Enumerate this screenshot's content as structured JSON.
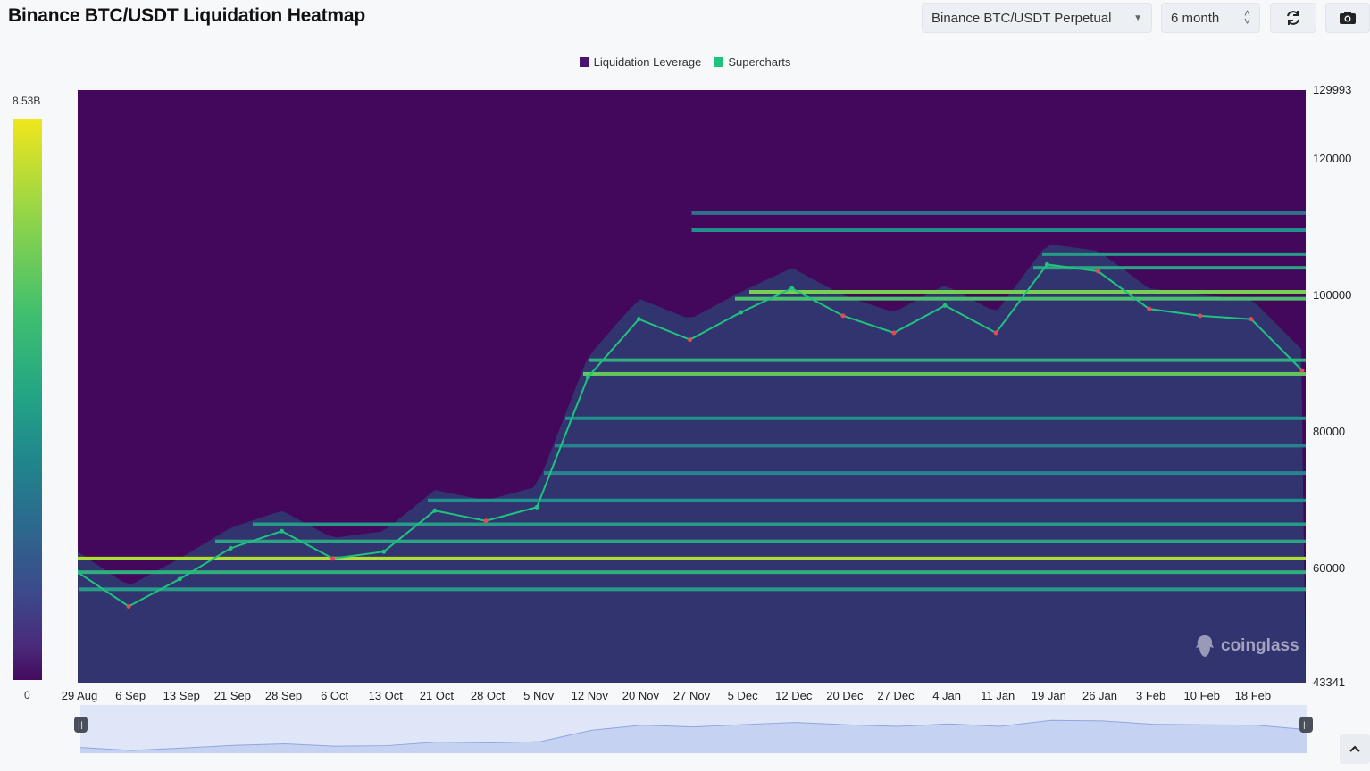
{
  "header": {
    "title": "Binance BTC/USDT Liquidation Heatmap",
    "pair_select": "Binance BTC/USDT Perpetual",
    "range_select": "6 month",
    "refresh_icon": "refresh-icon",
    "camera_icon": "camera-icon"
  },
  "legend": [
    {
      "label": "Liquidation Leverage",
      "color": "#4a1470"
    },
    {
      "label": "Supercharts",
      "color": "#1ec47e"
    }
  ],
  "scale": {
    "max_label": "8.53B",
    "min_label": "0"
  },
  "watermark": "coinglass",
  "chart_data": {
    "type": "heatmap",
    "y_ticks": [
      "129993",
      "120000",
      "100000",
      "80000",
      "60000",
      "43341"
    ],
    "ylim": [
      43341,
      129993
    ],
    "x_ticks": [
      "29 Aug",
      "6 Sep",
      "13 Sep",
      "21 Sep",
      "28 Sep",
      "6 Oct",
      "13 Oct",
      "21 Oct",
      "28 Oct",
      "5 Nov",
      "12 Nov",
      "20 Nov",
      "27 Nov",
      "5 Dec",
      "12 Dec",
      "20 Dec",
      "27 Dec",
      "4 Jan",
      "11 Jan",
      "19 Jan",
      "26 Jan",
      "3 Feb",
      "10 Feb",
      "18 Feb"
    ],
    "price_series": {
      "name": "Supercharts",
      "x": [
        "29 Aug",
        "6 Sep",
        "13 Sep",
        "21 Sep",
        "28 Sep",
        "6 Oct",
        "13 Oct",
        "21 Oct",
        "28 Oct",
        "5 Nov",
        "12 Nov",
        "20 Nov",
        "27 Nov",
        "5 Dec",
        "12 Dec",
        "20 Dec",
        "27 Dec",
        "4 Jan",
        "11 Jan",
        "19 Jan",
        "26 Jan",
        "3 Feb",
        "10 Feb",
        "18 Feb",
        "25 Feb"
      ],
      "values": [
        59500,
        54500,
        58500,
        63000,
        65500,
        61500,
        62500,
        68500,
        67000,
        69000,
        88000,
        96500,
        93500,
        97500,
        101000,
        97000,
        94500,
        98500,
        94500,
        104500,
        103500,
        98000,
        97000,
        96500,
        89000
      ]
    },
    "liquidation_bands": [
      {
        "price": 61500,
        "intensity": 0.9
      },
      {
        "price": 59500,
        "intensity": 0.6
      },
      {
        "price": 57000,
        "intensity": 0.5
      },
      {
        "price": 64000,
        "intensity": 0.55
      },
      {
        "price": 66500,
        "intensity": 0.5
      },
      {
        "price": 70000,
        "intensity": 0.45
      },
      {
        "price": 74000,
        "intensity": 0.4
      },
      {
        "price": 78000,
        "intensity": 0.4
      },
      {
        "price": 82000,
        "intensity": 0.45
      },
      {
        "price": 88500,
        "intensity": 0.75
      },
      {
        "price": 90500,
        "intensity": 0.6
      },
      {
        "price": 99500,
        "intensity": 0.7
      },
      {
        "price": 100500,
        "intensity": 0.8
      },
      {
        "price": 104000,
        "intensity": 0.55
      },
      {
        "price": 106000,
        "intensity": 0.5
      },
      {
        "price": 109500,
        "intensity": 0.45
      },
      {
        "price": 112000,
        "intensity": 0.35
      }
    ]
  }
}
